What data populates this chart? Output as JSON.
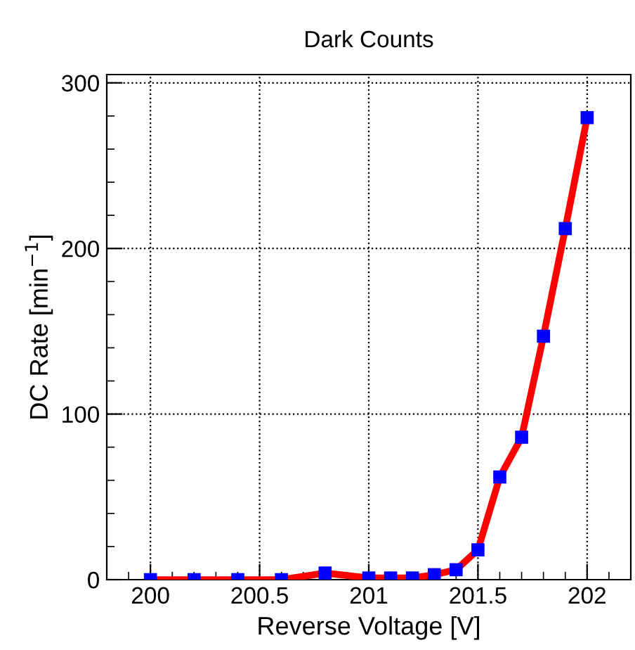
{
  "chart_data": {
    "type": "line",
    "title": "Dark Counts",
    "xlabel": "Reverse Voltage [V]",
    "ylabel": "DC Rate [min$^{−1}$]",
    "x": [
      200,
      200.2,
      200.4,
      200.6,
      200.8,
      201.0,
      201.1,
      201.2,
      201.3,
      201.4,
      201.5,
      201.6,
      201.7,
      201.8,
      201.9,
      202.0
    ],
    "series": [
      {
        "color": "#ff0000",
        "values": [
          0,
          0,
          0,
          0,
          4,
          1,
          1,
          1,
          3,
          6,
          18,
          62,
          86,
          147,
          212,
          279
        ]
      }
    ],
    "marker": "square",
    "line_style": "solid",
    "xlim": [
      199.8,
      202.2
    ],
    "xticks": [
      200,
      200.5,
      201,
      201.5,
      202
    ],
    "ylim": [
      0,
      305
    ],
    "yticks": [
      0,
      100,
      200,
      300
    ],
    "grid": true,
    "legend": false
  }
}
